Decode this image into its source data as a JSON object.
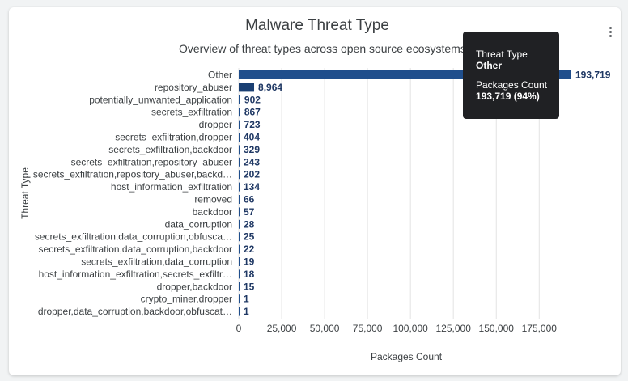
{
  "header": {
    "title": "Malware Threat Type",
    "subtitle": "Overview of threat types across open source ecosystems."
  },
  "menu": {
    "icon": "more-vert-icon"
  },
  "tooltip": {
    "label1": "Threat Type",
    "value1": "Other",
    "label2": "Packages Count",
    "value2": "193,719 (94%)"
  },
  "chart_data": {
    "type": "bar",
    "orientation": "horizontal",
    "title": "Malware Threat Type",
    "subtitle": "Overview of threat types across open source ecosystems.",
    "xlabel": "Packages Count",
    "ylabel": "Threat Type",
    "xlim": [
      0,
      193719
    ],
    "xticks": [
      0,
      25000,
      50000,
      75000,
      100000,
      125000,
      150000,
      175000
    ],
    "xtick_labels": [
      "0",
      "25,000",
      "50,000",
      "75,000",
      "100,000",
      "125,000",
      "150,000",
      "175,000"
    ],
    "grid": "vertical",
    "colors": {
      "bar": "#1f4e8c",
      "highlight": "#1a3f73",
      "label": "#1f3864"
    },
    "categories": [
      "Other",
      "repository_abuser",
      "potentially_unwanted_application",
      "secrets_exfiltration",
      "dropper",
      "secrets_exfiltration,dropper",
      "secrets_exfiltration,backdoor",
      "secrets_exfiltration,repository_abuser",
      "secrets_exfiltration,repository_abuser,backd…",
      "host_information_exfiltration",
      "removed",
      "backdoor",
      "data_corruption",
      "secrets_exfiltration,data_corruption,obfusca…",
      "secrets_exfiltration,data_corruption,backdoor",
      "secrets_exfiltration,data_corruption",
      "host_information_exfiltration,secrets_exfiltr…",
      "dropper,backdoor",
      "crypto_miner,dropper",
      "dropper,data_corruption,backdoor,obfuscat…"
    ],
    "values": [
      193719,
      8964,
      902,
      867,
      723,
      404,
      329,
      243,
      202,
      134,
      66,
      57,
      28,
      25,
      22,
      19,
      18,
      15,
      1,
      1
    ],
    "value_labels": [
      "193,719",
      "8,964",
      "902",
      "867",
      "723",
      "404",
      "329",
      "243",
      "202",
      "134",
      "66",
      "57",
      "28",
      "25",
      "22",
      "19",
      "18",
      "15",
      "1",
      "1"
    ]
  }
}
